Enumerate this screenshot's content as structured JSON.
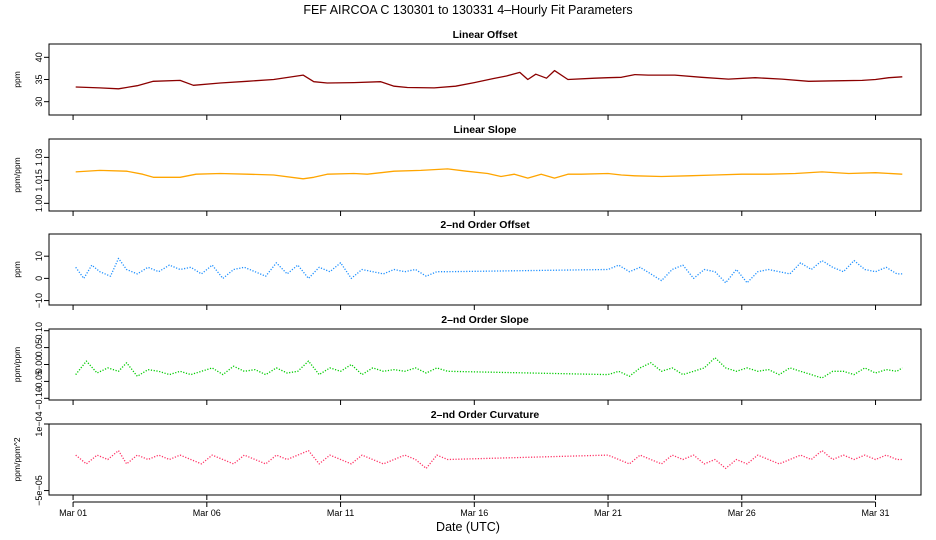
{
  "title": "FEF   AIRCOA C   130301 to 130331   4–Hourly Fit Parameters",
  "xlabel": "Date (UTC)",
  "x_ticks": [
    {
      "day": 1,
      "label": "Mar 01"
    },
    {
      "day": 6,
      "label": "Mar 06"
    },
    {
      "day": 11,
      "label": "Mar 11"
    },
    {
      "day": 16,
      "label": "Mar 16"
    },
    {
      "day": 21,
      "label": "Mar 21"
    },
    {
      "day": 26,
      "label": "Mar 26"
    },
    {
      "day": 31,
      "label": "Mar 31"
    }
  ],
  "xlim": [
    0.1,
    32.7
  ],
  "chart_data": [
    {
      "type": "line",
      "title": "Linear Offset",
      "ylabel": "ppm",
      "ylim": [
        27,
        43
      ],
      "yticks": [
        {
          "v": 30,
          "label": "30"
        },
        {
          "v": 35,
          "label": "35"
        },
        {
          "v": 40,
          "label": "40"
        }
      ],
      "series": [
        {
          "name": "Linear Offset",
          "color": "#8b0000",
          "line": "solid",
          "x": [
            1.1,
            2.0,
            2.7,
            3.4,
            4.0,
            5.0,
            5.5,
            6.5,
            7.5,
            8.5,
            9.6,
            10.0,
            10.5,
            11.5,
            12.5,
            13.0,
            13.5,
            14.5,
            15.3,
            16.0,
            16.7,
            17.2,
            17.7,
            18.0,
            18.3,
            18.7,
            19.0,
            19.5,
            20.5,
            21.0,
            21.5,
            22.0,
            22.5,
            23.5,
            24.5,
            25.5,
            26.5,
            27.5,
            28.5,
            29.5,
            30.5,
            31.0,
            31.5,
            32.0
          ],
          "y": [
            33.3,
            33.1,
            32.9,
            33.6,
            34.6,
            34.8,
            33.7,
            34.2,
            34.6,
            35.0,
            36.0,
            34.5,
            34.2,
            34.3,
            34.5,
            33.5,
            33.2,
            33.1,
            33.5,
            34.3,
            35.2,
            35.8,
            36.6,
            35.0,
            36.2,
            35.3,
            37.0,
            35.0,
            35.3,
            35.4,
            35.5,
            36.1,
            36.0,
            36.0,
            35.5,
            35.1,
            35.4,
            35.1,
            34.6,
            34.7,
            34.8,
            35.0,
            35.4,
            35.6
          ]
        }
      ]
    },
    {
      "type": "line",
      "title": "Linear Slope",
      "ylabel": "ppm/ppm",
      "ylim": [
        0.995,
        1.042
      ],
      "yticks": [
        {
          "v": 1.0,
          "label": "1.00"
        },
        {
          "v": 1.015,
          "label": "1.015"
        },
        {
          "v": 1.03,
          "label": "1.03"
        }
      ],
      "series": [
        {
          "name": "Linear Slope",
          "color": "#ffa500",
          "line": "solid",
          "x": [
            1.1,
            2.0,
            3.0,
            3.6,
            4.0,
            5.0,
            5.6,
            6.5,
            7.5,
            8.5,
            9.6,
            10.0,
            10.5,
            11.5,
            12.0,
            13.0,
            14.0,
            15.0,
            15.7,
            16.5,
            17.0,
            17.5,
            18.0,
            18.5,
            19.0,
            19.5,
            20.0,
            21.0,
            21.5,
            22.0,
            23.0,
            24.0,
            25.0,
            26.0,
            27.0,
            28.0,
            29.0,
            30.0,
            31.0,
            32.0
          ],
          "y": [
            1.0205,
            1.0215,
            1.021,
            1.019,
            1.017,
            1.017,
            1.019,
            1.0195,
            1.019,
            1.0185,
            1.016,
            1.017,
            1.019,
            1.0195,
            1.019,
            1.021,
            1.0215,
            1.0225,
            1.021,
            1.0195,
            1.0175,
            1.019,
            1.0165,
            1.019,
            1.0165,
            1.019,
            1.019,
            1.0195,
            1.0185,
            1.018,
            1.0175,
            1.018,
            1.0185,
            1.019,
            1.019,
            1.0195,
            1.0205,
            1.0195,
            1.02,
            1.019
          ]
        }
      ]
    },
    {
      "type": "line",
      "title": "2–nd Order Offset",
      "ylabel": "ppm",
      "ylim": [
        -12,
        20
      ],
      "yticks": [
        {
          "v": -10,
          "label": "−10"
        },
        {
          "v": 0,
          "label": "0"
        },
        {
          "v": 10,
          "label": "10"
        }
      ],
      "series": [
        {
          "name": "2–nd Order Offset",
          "color": "#1e90ff",
          "line": "dotted",
          "x": [
            1.1,
            1.4,
            1.7,
            2.0,
            2.4,
            2.7,
            3.0,
            3.4,
            3.8,
            4.2,
            4.6,
            5.0,
            5.4,
            5.8,
            6.2,
            6.6,
            7.0,
            7.4,
            7.8,
            8.2,
            8.6,
            9.0,
            9.4,
            9.8,
            10.2,
            10.6,
            11.0,
            11.4,
            11.8,
            12.2,
            12.6,
            13.0,
            13.4,
            13.8,
            14.2,
            14.6,
            15.0,
            21.0,
            21.4,
            21.8,
            22.2,
            22.6,
            23.0,
            23.4,
            23.8,
            24.2,
            24.6,
            25.0,
            25.4,
            25.8,
            26.2,
            26.6,
            27.0,
            27.4,
            27.8,
            28.2,
            28.6,
            29.0,
            29.4,
            29.8,
            30.2,
            30.6,
            31.0,
            31.4,
            31.8,
            32.0
          ],
          "y": [
            5,
            0,
            6,
            3,
            1,
            9,
            4,
            2,
            5,
            3,
            6,
            4,
            5,
            2,
            6,
            0,
            4,
            5,
            3,
            1,
            7,
            2,
            6,
            0,
            5,
            3,
            7,
            0,
            4,
            3,
            2,
            4,
            3,
            4,
            1,
            3,
            3,
            4,
            6,
            3,
            5,
            2,
            -1,
            4,
            6,
            0,
            4,
            3,
            -2,
            4,
            -2,
            3,
            4,
            3,
            2,
            7,
            4,
            8,
            5,
            3,
            8,
            4,
            3,
            5,
            2,
            2
          ]
        }
      ]
    },
    {
      "type": "line",
      "title": "2–nd Order Slope",
      "ylabel": "ppm/ppm",
      "ylim": [
        -0.105,
        0.105
      ],
      "yticks": [
        {
          "v": -0.1,
          "label": "−0.10"
        },
        {
          "v": -0.05,
          "label": "−0.05"
        },
        {
          "v": 0.0,
          "label": "0.00"
        },
        {
          "v": 0.05,
          "label": "0.05"
        },
        {
          "v": 0.1,
          "label": "0.10"
        }
      ],
      "series": [
        {
          "name": "2–nd Order Slope",
          "color": "#00cc00",
          "line": "dotted",
          "x": [
            1.1,
            1.5,
            1.9,
            2.3,
            2.7,
            3.0,
            3.4,
            3.8,
            4.2,
            4.6,
            5.0,
            5.4,
            5.8,
            6.2,
            6.6,
            7.0,
            7.4,
            7.8,
            8.2,
            8.6,
            9.0,
            9.4,
            9.8,
            10.2,
            10.6,
            11.0,
            11.4,
            11.8,
            12.2,
            12.6,
            13.0,
            13.4,
            13.8,
            14.2,
            14.6,
            15.0,
            21.0,
            21.4,
            21.8,
            22.2,
            22.6,
            23.0,
            23.4,
            23.8,
            24.2,
            24.6,
            25.0,
            25.4,
            25.8,
            26.2,
            26.6,
            27.0,
            27.4,
            27.8,
            28.2,
            28.6,
            29.0,
            29.4,
            29.8,
            30.2,
            30.6,
            31.0,
            31.4,
            31.8,
            32.0
          ],
          "y": [
            -0.03,
            0.01,
            -0.025,
            -0.01,
            -0.02,
            0.005,
            -0.035,
            -0.015,
            -0.02,
            -0.03,
            -0.02,
            -0.03,
            -0.02,
            -0.01,
            -0.03,
            -0.005,
            -0.02,
            -0.015,
            -0.03,
            -0.01,
            -0.025,
            -0.02,
            0.01,
            -0.03,
            -0.01,
            -0.02,
            0.0,
            -0.03,
            -0.01,
            -0.02,
            -0.015,
            -0.02,
            -0.01,
            -0.025,
            -0.01,
            -0.02,
            -0.03,
            -0.02,
            -0.035,
            -0.01,
            0.005,
            -0.02,
            -0.01,
            -0.03,
            -0.02,
            -0.01,
            0.02,
            -0.01,
            -0.02,
            -0.01,
            -0.02,
            -0.015,
            -0.03,
            -0.01,
            -0.02,
            -0.03,
            -0.04,
            -0.02,
            -0.02,
            -0.03,
            -0.01,
            -0.025,
            -0.015,
            -0.02,
            -0.01
          ]
        }
      ]
    },
    {
      "type": "line",
      "title": "2–nd Order Curvature",
      "ylabel": "ppm/ppm^2",
      "ylim": [
        -6e-05,
        0.0001
      ],
      "yticks": [
        {
          "v": -5e-05,
          "label": "−5e−05"
        },
        {
          "v": 0.0001,
          "label": "1e−04"
        }
      ],
      "series": [
        {
          "name": "2–nd Order Curvature",
          "color": "#ff3366",
          "line": "dotted",
          "x": [
            1.1,
            1.5,
            1.9,
            2.3,
            2.7,
            3.0,
            3.4,
            3.8,
            4.2,
            4.6,
            5.0,
            5.4,
            5.8,
            6.2,
            6.6,
            7.0,
            7.4,
            7.8,
            8.2,
            8.6,
            9.0,
            9.4,
            9.8,
            10.2,
            10.6,
            11.0,
            11.4,
            11.8,
            12.2,
            12.6,
            13.0,
            13.4,
            13.8,
            14.2,
            14.6,
            15.0,
            21.0,
            21.4,
            21.8,
            22.2,
            22.6,
            23.0,
            23.4,
            23.8,
            24.2,
            24.6,
            25.0,
            25.4,
            25.8,
            26.2,
            26.6,
            27.0,
            27.4,
            27.8,
            28.2,
            28.6,
            29.0,
            29.4,
            29.8,
            30.2,
            30.6,
            31.0,
            31.4,
            31.8,
            32.0
          ],
          "y": [
            3e-05,
            1e-05,
            3e-05,
            2e-05,
            4e-05,
            1e-05,
            3e-05,
            2e-05,
            3e-05,
            2e-05,
            3e-05,
            2e-05,
            1e-05,
            3e-05,
            2e-05,
            1e-05,
            3e-05,
            2e-05,
            1e-05,
            3e-05,
            2e-05,
            3e-05,
            4e-05,
            1e-05,
            3e-05,
            2e-05,
            1e-05,
            3e-05,
            2e-05,
            1e-05,
            2e-05,
            3e-05,
            2e-05,
            0.0,
            3e-05,
            2e-05,
            3e-05,
            2e-05,
            1e-05,
            3e-05,
            2e-05,
            1e-05,
            3e-05,
            2e-05,
            3e-05,
            1e-05,
            2e-05,
            0.0,
            2e-05,
            1e-05,
            3e-05,
            2e-05,
            1e-05,
            2e-05,
            3e-05,
            2e-05,
            4e-05,
            2e-05,
            3e-05,
            2e-05,
            3e-05,
            2e-05,
            3e-05,
            2e-05,
            2e-05
          ]
        }
      ]
    }
  ]
}
